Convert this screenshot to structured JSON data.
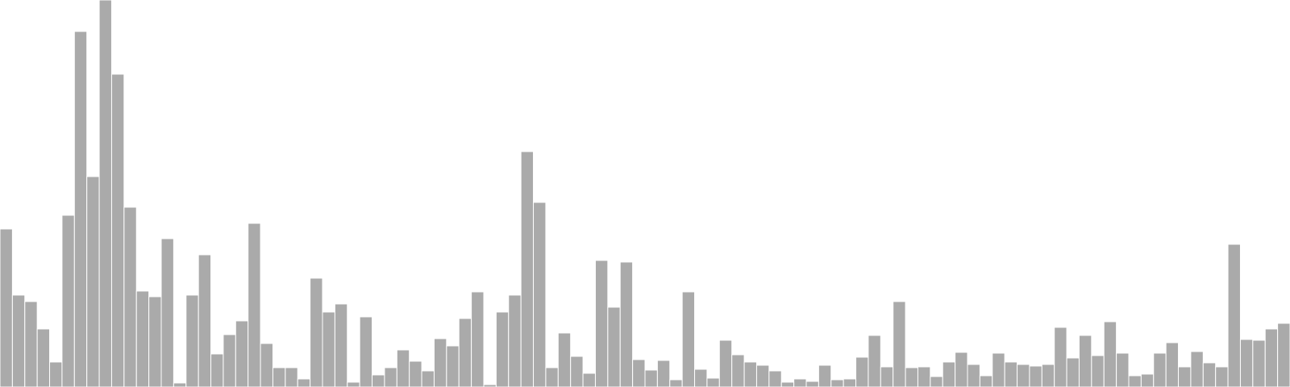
{
  "chart_data": {
    "type": "bar",
    "title": "",
    "xlabel": "",
    "ylabel": "",
    "ylim": [
      0,
      480
    ],
    "grid": false,
    "legend": "none",
    "bar_color": "#aaaaaa",
    "bar_stroke": "#ffffff",
    "values": [
      196,
      114,
      106,
      72,
      31,
      213,
      441,
      261,
      480,
      388,
      223,
      119,
      112,
      184,
      5,
      114,
      164,
      41,
      65,
      82,
      203,
      54,
      24,
      24,
      10,
      135,
      93,
      103,
      6,
      87,
      15,
      24,
      46,
      32,
      20,
      60,
      51,
      85,
      118,
      3,
      93,
      114,
      292,
      229,
      24,
      67,
      38,
      17,
      157,
      99,
      155,
      34,
      21,
      33,
      9,
      118,
      22,
      11,
      58,
      40,
      31,
      27,
      20,
      6,
      10,
      7,
      27,
      9,
      10,
      37,
      64,
      25,
      106,
      24,
      25,
      13,
      31,
      43,
      28,
      14,
      42,
      31,
      28,
      26,
      28,
      74,
      36,
      64,
      39,
      81,
      42,
      14,
      16,
      42,
      55,
      25,
      44,
      30,
      25,
      177,
      59,
      58,
      72,
      79
    ]
  }
}
